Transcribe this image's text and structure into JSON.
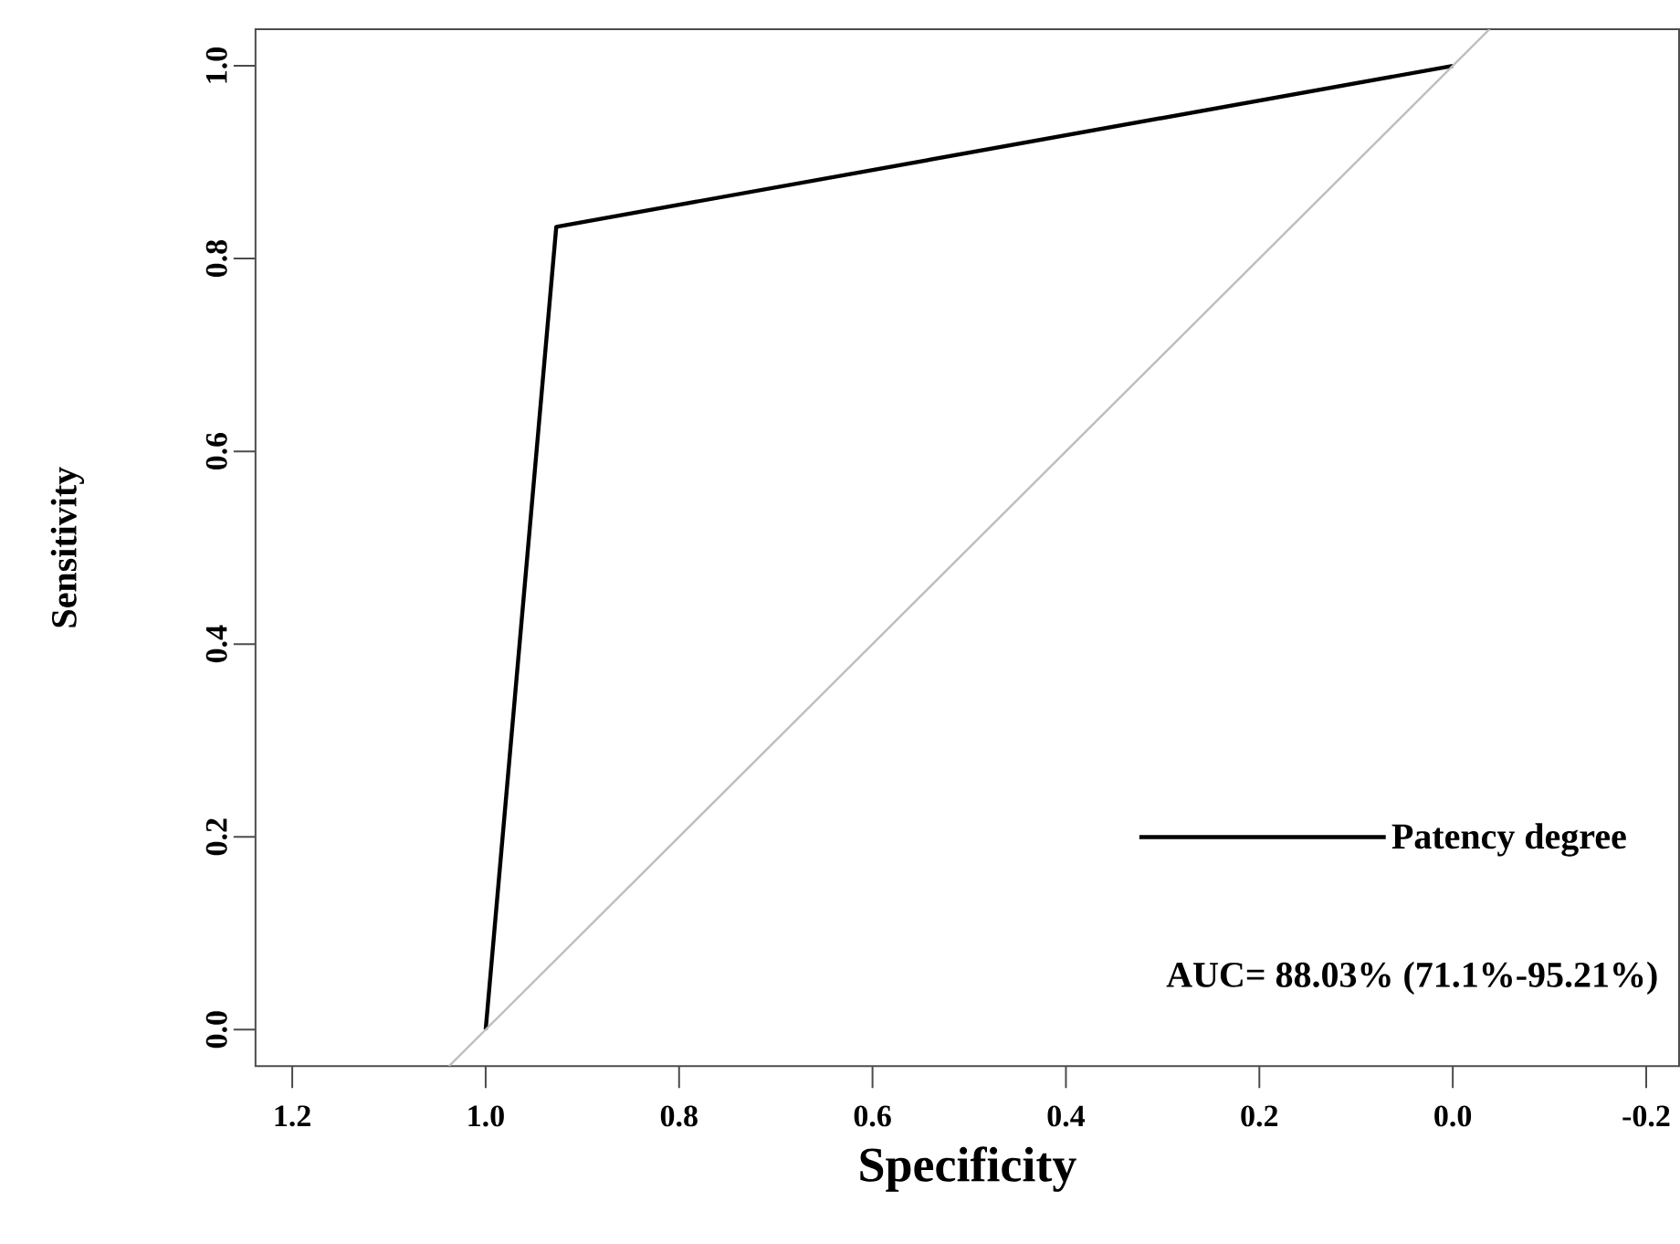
{
  "chart_data": {
    "type": "line",
    "xlabel": "Specificity",
    "ylabel": "Sensitivity",
    "xlim": [
      1.238,
      -0.234
    ],
    "ylim": [
      -0.038,
      1.038
    ],
    "xticks": [
      1.2,
      {
        "value": 1.0,
        "label": "1.0"
      },
      0.8,
      0.6,
      0.4,
      0.2,
      {
        "value": 0.0,
        "label": "0.0"
      },
      -0.2
    ],
    "yticks": [
      {
        "value": 0.0,
        "label": "0.0"
      },
      0.2,
      0.4,
      0.6,
      0.8,
      {
        "value": 1.0,
        "label": "1.0"
      }
    ],
    "series": [
      {
        "name": "Patency degree",
        "color": "#000000",
        "x": [
          1.0,
          0.927,
          0.0
        ],
        "values": [
          0.0,
          0.833,
          1.0
        ]
      },
      {
        "color": "#bebebe",
        "x": [
          1.038,
          -0.038
        ],
        "values": [
          -0.038,
          1.038
        ]
      }
    ],
    "legend": "bottom right",
    "annotations": [
      "AUC= 88.03% (71.1%-95.21%)"
    ]
  }
}
